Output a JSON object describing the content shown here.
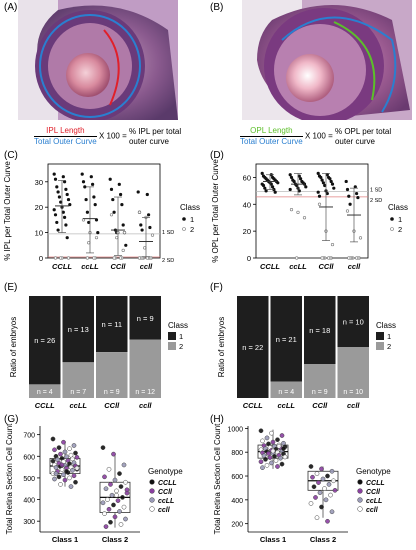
{
  "panels": {
    "A": {
      "label": "(A)",
      "formula": {
        "num": "IPL Length",
        "den": "Total Outer Curve",
        "mult": "X 100 =",
        "result1": "% IPL per total",
        "result2": "outer curve"
      }
    },
    "B": {
      "label": "(B)",
      "formula": {
        "num": "OPL Length",
        "den": "Total Outer Curve",
        "mult": "X 100 =",
        "result1": "% OPL per total",
        "result2": "outer curve"
      }
    },
    "C": {
      "label": "(C)"
    },
    "D": {
      "label": "(D)"
    },
    "E": {
      "label": "(E)"
    },
    "F": {
      "label": "(F)"
    },
    "G": {
      "label": "(G)"
    },
    "H": {
      "label": "(H)"
    }
  },
  "colors": {
    "ipl": "#e0202a",
    "outer": "#2a7fd0",
    "opl": "#5cbf2a",
    "class1_bar": "#1e1e1e",
    "class2_bar": "#9a9a9a"
  },
  "chart_data": [
    {
      "id": "C",
      "type": "scatter",
      "ylabel": "% IPL per Total Outer Curve",
      "categories": [
        "CCLL",
        "ccLL",
        "CCll",
        "ccll"
      ],
      "yticks": [
        "0",
        "10",
        "20",
        "30"
      ],
      "ylim": [
        0,
        37
      ],
      "legend_title": "Class",
      "legend": [
        "1",
        "2"
      ],
      "annotations": [
        "1 SD",
        "2 SD"
      ],
      "sd_lines": [
        9.5,
        0.4
      ],
      "means": [
        20.5,
        15.5,
        11,
        6.5
      ],
      "sd_upper": [
        30.5,
        28,
        24,
        16
      ],
      "sd_lower": [
        10,
        2,
        1,
        0.5
      ],
      "class1": [
        [
          33,
          32,
          31,
          30,
          28,
          27,
          26,
          25,
          24,
          23,
          22,
          21,
          20,
          19,
          18,
          17,
          16,
          14,
          13,
          11,
          8
        ],
        [
          33,
          32,
          30,
          29,
          28,
          24,
          23,
          21,
          18,
          15,
          14,
          10
        ],
        [
          31,
          29,
          27,
          25,
          23,
          21,
          18,
          13,
          11,
          10,
          10,
          5
        ],
        [
          26,
          25,
          18,
          17,
          13,
          12,
          11
        ]
      ],
      "class2": [
        [
          0,
          0,
          0,
          0
        ],
        [
          15,
          10,
          8,
          6,
          0,
          0,
          0
        ],
        [
          17,
          10,
          10,
          8,
          3,
          0,
          0,
          0,
          0
        ],
        [
          18,
          16,
          9,
          4,
          0,
          0,
          0,
          0,
          0,
          0,
          0,
          0
        ]
      ]
    },
    {
      "id": "D",
      "type": "scatter",
      "ylabel": "% OPL per Total Outer Curve",
      "categories": [
        "CCLL",
        "ccLL",
        "CCll",
        "ccll"
      ],
      "yticks": [
        "0",
        "20",
        "40",
        "60"
      ],
      "ylim": [
        0,
        70
      ],
      "legend_title": "Class",
      "legend": [
        "1",
        "2"
      ],
      "annotations": [
        "1 SD",
        "2 SD"
      ],
      "sd_lines": [
        49.5,
        45.5
      ],
      "means": [
        57,
        55,
        38,
        32
      ],
      "sd_upper": [
        62,
        63,
        63,
        52
      ],
      "sd_lower": [
        51,
        47,
        13,
        12
      ],
      "class1": [
        [
          63,
          62,
          61,
          60,
          60,
          59,
          59,
          58,
          58,
          57,
          57,
          56,
          56,
          55,
          55,
          54,
          53,
          52,
          51,
          50,
          49
        ],
        [
          62,
          61,
          60,
          59,
          58,
          57,
          57,
          56,
          55,
          55,
          54,
          53,
          52,
          51,
          50
        ],
        [
          63,
          62,
          61,
          60,
          60,
          59,
          58,
          57,
          56,
          55,
          54,
          52,
          50,
          49,
          48,
          46
        ],
        [
          57,
          53,
          51,
          48,
          46,
          45,
          40
        ]
      ],
      "class2": [
        [],
        [
          36,
          34,
          30,
          0
        ],
        [
          40,
          20,
          10,
          0,
          0,
          0,
          0,
          0,
          0
        ],
        [
          35,
          20,
          15,
          0,
          0,
          0,
          0,
          0,
          0,
          0
        ]
      ]
    },
    {
      "id": "E",
      "type": "bar",
      "ylabel": "Ratio of embryos",
      "categories": [
        "CCLL",
        "ccLL",
        "CCll",
        "ccll"
      ],
      "legend_title": "Class",
      "legend": [
        "1",
        "2"
      ],
      "class1_counts": [
        26,
        13,
        11,
        9
      ],
      "class2_counts": [
        4,
        7,
        9,
        12
      ],
      "class1_labels": [
        "n = 26",
        "n = 13",
        "n = 11",
        "n = 9"
      ],
      "class2_labels": [
        "n = 4",
        "n = 7",
        "n = 9",
        "n = 12"
      ]
    },
    {
      "id": "F",
      "type": "bar",
      "ylabel": "Ratio of embryos",
      "categories": [
        "CCLL",
        "ccLL",
        "CCll",
        "ccll"
      ],
      "legend_title": "Class",
      "legend": [
        "1",
        "2"
      ],
      "class1_counts": [
        22,
        21,
        18,
        10
      ],
      "class2_counts": [
        0,
        4,
        9,
        10
      ],
      "class1_labels": [
        "n = 22",
        "n = 21",
        "n = 18",
        "n = 10"
      ],
      "class2_labels": [
        "",
        "n = 4",
        "n = 9",
        "n = 10"
      ]
    },
    {
      "id": "G",
      "type": "box",
      "ylabel": "Total Retina Section Cell Count",
      "categories": [
        "Class 1",
        "Class 2"
      ],
      "yticks": [
        "300",
        "400",
        "500",
        "600",
        "700"
      ],
      "ylim": [
        250,
        740
      ],
      "legend_title": "Genotype",
      "legend": [
        "CCLL",
        "CCll",
        "ccLL",
        "ccll"
      ],
      "genotype_colors": [
        "#111111",
        "#8a3fa0",
        "#9a9ab8",
        "#ffffff"
      ],
      "boxes": [
        {
          "q1": 520,
          "median": 555,
          "q3": 590,
          "lo": 460,
          "hi": 670
        },
        {
          "q1": 340,
          "median": 410,
          "q3": 480,
          "lo": 270,
          "hi": 610
        }
      ],
      "points": [
        [
          [
            680,
            0
          ],
          [
            665,
            1
          ],
          [
            650,
            2
          ],
          [
            640,
            0
          ],
          [
            635,
            3
          ],
          [
            630,
            1
          ],
          [
            620,
            2
          ],
          [
            615,
            0
          ],
          [
            610,
            1
          ],
          [
            605,
            3
          ],
          [
            600,
            0
          ],
          [
            598,
            2
          ],
          [
            595,
            1
          ],
          [
            590,
            0
          ],
          [
            588,
            3
          ],
          [
            585,
            2
          ],
          [
            580,
            1
          ],
          [
            578,
            0
          ],
          [
            575,
            3
          ],
          [
            570,
            2
          ],
          [
            568,
            1
          ],
          [
            565,
            0
          ],
          [
            560,
            3
          ],
          [
            558,
            2
          ],
          [
            555,
            1
          ],
          [
            552,
            0
          ],
          [
            550,
            3
          ],
          [
            548,
            2
          ],
          [
            545,
            1
          ],
          [
            540,
            0
          ],
          [
            538,
            3
          ],
          [
            535,
            2
          ],
          [
            530,
            1
          ],
          [
            525,
            0
          ],
          [
            520,
            3
          ],
          [
            515,
            2
          ],
          [
            510,
            1
          ],
          [
            505,
            0
          ],
          [
            500,
            3
          ],
          [
            495,
            2
          ],
          [
            490,
            1
          ],
          [
            480,
            0
          ],
          [
            470,
            3
          ],
          [
            460,
            2
          ],
          [
            520,
            2
          ],
          [
            530,
            0
          ],
          [
            545,
            3
          ],
          [
            560,
            1
          ]
        ],
        [
          [
            640,
            0
          ],
          [
            610,
            1
          ],
          [
            560,
            2
          ],
          [
            540,
            3
          ],
          [
            520,
            0
          ],
          [
            505,
            1
          ],
          [
            490,
            2
          ],
          [
            480,
            3
          ],
          [
            470,
            1
          ],
          [
            460,
            0
          ],
          [
            450,
            2
          ],
          [
            440,
            3
          ],
          [
            430,
            1
          ],
          [
            420,
            2
          ],
          [
            410,
            0
          ],
          [
            400,
            3
          ],
          [
            395,
            1
          ],
          [
            385,
            2
          ],
          [
            375,
            0
          ],
          [
            365,
            3
          ],
          [
            355,
            1
          ],
          [
            345,
            2
          ],
          [
            335,
            3
          ],
          [
            320,
            1
          ],
          [
            310,
            2
          ],
          [
            295,
            0
          ],
          [
            285,
            3
          ],
          [
            275,
            1
          ],
          [
            420,
            3
          ],
          [
            445,
            1
          ]
        ]
      ]
    },
    {
      "id": "H",
      "type": "box",
      "ylabel": "Total Retina Section Cell Count",
      "categories": [
        "Class 1",
        "Class 2"
      ],
      "yticks": [
        "200",
        "400",
        "600",
        "800",
        "1000"
      ],
      "ylim": [
        130,
        1020
      ],
      "legend_title": "Genotype",
      "legend": [
        "CCLL",
        "CCll",
        "ccLL",
        "ccll"
      ],
      "genotype_colors": [
        "#111111",
        "#8a3fa0",
        "#9a9ab8",
        "#ffffff"
      ],
      "boxes": [
        {
          "q1": 750,
          "median": 805,
          "q3": 860,
          "lo": 660,
          "hi": 990
        },
        {
          "q1": 480,
          "median": 560,
          "q3": 640,
          "lo": 250,
          "hi": 680
        }
      ],
      "points": [
        [
          [
            980,
            0
          ],
          [
            960,
            3
          ],
          [
            940,
            1
          ],
          [
            920,
            2
          ],
          [
            905,
            0
          ],
          [
            895,
            3
          ],
          [
            885,
            1
          ],
          [
            875,
            2
          ],
          [
            870,
            0
          ],
          [
            860,
            3
          ],
          [
            855,
            1
          ],
          [
            850,
            2
          ],
          [
            845,
            0
          ],
          [
            840,
            3
          ],
          [
            835,
            1
          ],
          [
            830,
            2
          ],
          [
            825,
            0
          ],
          [
            820,
            3
          ],
          [
            815,
            1
          ],
          [
            810,
            2
          ],
          [
            805,
            0
          ],
          [
            800,
            3
          ],
          [
            795,
            1
          ],
          [
            790,
            2
          ],
          [
            785,
            0
          ],
          [
            780,
            3
          ],
          [
            775,
            1
          ],
          [
            770,
            2
          ],
          [
            765,
            0
          ],
          [
            760,
            3
          ],
          [
            755,
            1
          ],
          [
            750,
            2
          ],
          [
            740,
            0
          ],
          [
            730,
            3
          ],
          [
            720,
            1
          ],
          [
            710,
            2
          ],
          [
            700,
            0
          ],
          [
            690,
            3
          ],
          [
            680,
            1
          ],
          [
            670,
            2
          ],
          [
            810,
            3
          ],
          [
            830,
            0
          ],
          [
            790,
            1
          ],
          [
            850,
            3
          ]
        ],
        [
          [
            680,
            0
          ],
          [
            660,
            1
          ],
          [
            640,
            2
          ],
          [
            620,
            3
          ],
          [
            600,
            0
          ],
          [
            590,
            1
          ],
          [
            575,
            2
          ],
          [
            560,
            3
          ],
          [
            545,
            1
          ],
          [
            530,
            2
          ],
          [
            510,
            0
          ],
          [
            495,
            3
          ],
          [
            480,
            1
          ],
          [
            460,
            2
          ],
          [
            440,
            3
          ],
          [
            420,
            1
          ],
          [
            400,
            2
          ],
          [
            370,
            3
          ],
          [
            340,
            0
          ],
          [
            300,
            2
          ],
          [
            250,
            3
          ],
          [
            220,
            1
          ]
        ]
      ]
    }
  ]
}
